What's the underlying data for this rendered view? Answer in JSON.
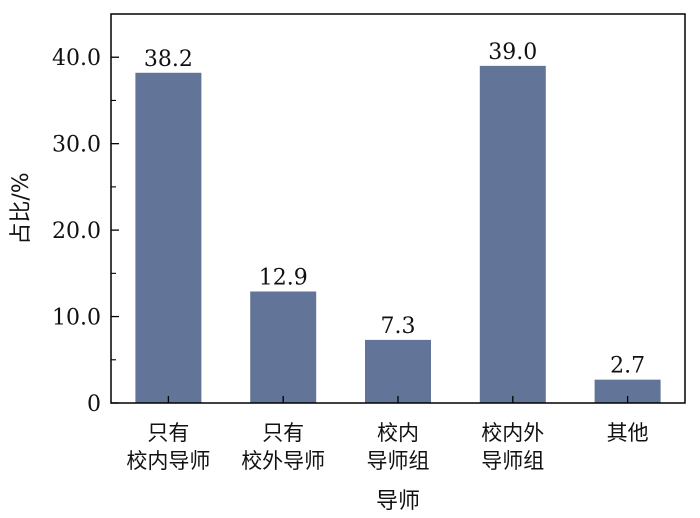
{
  "chart_data": {
    "type": "bar",
    "categories": [
      [
        "只有",
        "校内导师"
      ],
      [
        "只有",
        "校外导师"
      ],
      [
        "校内",
        "导师组"
      ],
      [
        "校内外",
        "导师组"
      ],
      [
        "其他"
      ]
    ],
    "values": [
      38.2,
      12.9,
      7.3,
      39.0,
      2.7
    ],
    "value_labels": [
      "38.2",
      "12.9",
      "7.3",
      "39.0",
      "2.7"
    ],
    "title": "",
    "xlabel": "导师",
    "ylabel": "占比/%",
    "ylim": [
      0,
      45
    ],
    "yticks": [
      0,
      10.0,
      20.0,
      30.0,
      40.0
    ],
    "ytick_labels": [
      "0",
      "10.0",
      "20.0",
      "30.0",
      "40.0"
    ],
    "grid": false,
    "bar_color": "#627599",
    "axis_color": "#000000"
  }
}
